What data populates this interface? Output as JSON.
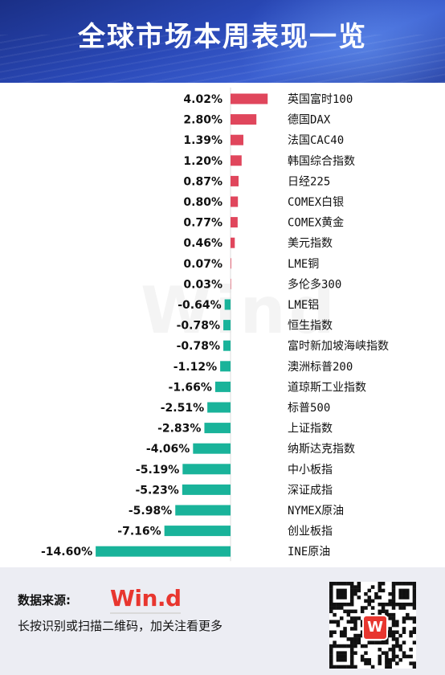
{
  "header": {
    "title": "全球市场本周表现一览"
  },
  "watermark": "Wind",
  "footer": {
    "source_label": "数据来源:",
    "logo_text": "Win.d",
    "note": "长按识别或扫描二维码，加关注看更多",
    "qr_badge": "W"
  },
  "colors": {
    "positive": "#e0465c",
    "negative": "#19b39a",
    "header": "#2a49b8"
  },
  "chart_data": {
    "type": "bar",
    "orientation": "horizontal",
    "title": "全球市场本周表现一览",
    "categories": [
      "英国富时100",
      "德国DAX",
      "法国CAC40",
      "韩国综合指数",
      "日经225",
      "COMEX白银",
      "COMEX黄金",
      "美元指数",
      "LME铜",
      "多伦多300",
      "LME铝",
      "恒生指数",
      "富时新加坡海峡指数",
      "澳洲标普200",
      "道琼斯工业指数",
      "标普500",
      "上证指数",
      "纳斯达克指数",
      "中小板指",
      "深证成指",
      "NYMEX原油",
      "创业板指",
      "INE原油"
    ],
    "values": [
      4.02,
      2.8,
      1.39,
      1.2,
      0.87,
      0.8,
      0.77,
      0.46,
      0.07,
      0.03,
      -0.64,
      -0.78,
      -0.78,
      -1.12,
      -1.66,
      -2.51,
      -2.83,
      -4.06,
      -5.19,
      -5.23,
      -5.98,
      -7.16,
      -14.6
    ],
    "value_labels": [
      "4.02%",
      "2.80%",
      "1.39%",
      "1.20%",
      "0.87%",
      "0.80%",
      "0.77%",
      "0.46%",
      "0.07%",
      "0.03%",
      "-0.64%",
      "-0.78%",
      "-0.78%",
      "-1.12%",
      "-1.66%",
      "-2.51%",
      "-2.83%",
      "-4.06%",
      "-5.19%",
      "-5.23%",
      "-5.98%",
      "-7.16%",
      "-14.60%"
    ],
    "unit": "%",
    "xlim": [
      -14.6,
      4.02
    ],
    "grid": false
  }
}
